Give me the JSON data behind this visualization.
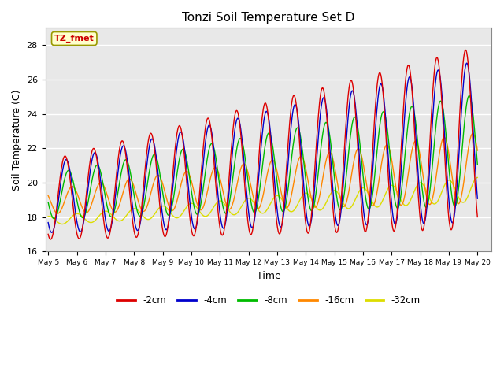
{
  "title": "Tonzi Soil Temperature Set D",
  "xlabel": "Time",
  "ylabel": "Soil Temperature (C)",
  "ylim": [
    16,
    29
  ],
  "xlim_days": [
    0,
    15.5
  ],
  "annotation": "TZ_fmet",
  "annotation_color": "#cc0000",
  "annotation_bg": "#ffffcc",
  "annotation_border": "#999900",
  "colors": {
    "-2cm": "#dd0000",
    "-4cm": "#0000cc",
    "-8cm": "#00bb00",
    "-16cm": "#ff8800",
    "-32cm": "#dddd00"
  },
  "legend_labels": [
    "-2cm",
    "-4cm",
    "-8cm",
    "-16cm",
    "-32cm"
  ],
  "bg_color": "#ffffff",
  "plot_bg": "#e8e8e8",
  "tick_labels": [
    "May 5",
    "May 6",
    "May 7",
    "May 8",
    "May 9",
    "May 10",
    "May 11",
    "May 12",
    "May 13",
    "May 14",
    "May 15",
    "May 16",
    "May 17",
    "May 18",
    "May 19",
    "May 20"
  ],
  "tick_positions": [
    0,
    1,
    2,
    3,
    4,
    5,
    6,
    7,
    8,
    9,
    10,
    11,
    12,
    13,
    14,
    15
  ]
}
